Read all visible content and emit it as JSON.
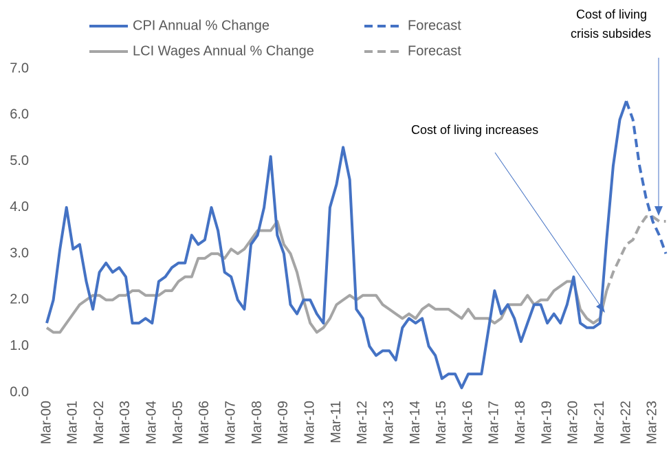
{
  "chart_data": {
    "type": "line",
    "categories": [
      "Mar-00",
      null,
      null,
      null,
      "Mar-01",
      null,
      null,
      null,
      "Mar-02",
      null,
      null,
      null,
      "Mar-03",
      null,
      null,
      null,
      "Mar-04",
      null,
      null,
      null,
      "Mar-05",
      null,
      null,
      null,
      "Mar-06",
      null,
      null,
      null,
      "Mar-07",
      null,
      null,
      null,
      "Mar-08",
      null,
      null,
      null,
      "Mar-09",
      null,
      null,
      null,
      "Mar-10",
      null,
      null,
      null,
      "Mar-11",
      null,
      null,
      null,
      "Mar-12",
      null,
      null,
      null,
      "Mar-13",
      null,
      null,
      null,
      "Mar-14",
      null,
      null,
      null,
      "Mar-15",
      null,
      null,
      null,
      "Mar-16",
      null,
      null,
      null,
      "Mar-17",
      null,
      null,
      null,
      "Mar-18",
      null,
      null,
      null,
      "Mar-19",
      null,
      null,
      null,
      "Mar-20",
      null,
      null,
      null,
      "Mar-21",
      null,
      null,
      null,
      "Mar-22",
      null,
      null,
      null,
      "Mar-23",
      null,
      null
    ],
    "series": [
      {
        "name": "CPI Annual % Change",
        "color": "#4472c4",
        "style": "solid",
        "values": [
          1.5,
          2.0,
          3.1,
          4.0,
          3.1,
          3.2,
          2.4,
          1.8,
          2.6,
          2.8,
          2.6,
          2.7,
          2.5,
          1.5,
          1.5,
          1.6,
          1.5,
          2.4,
          2.5,
          2.7,
          2.8,
          2.8,
          3.4,
          3.2,
          3.3,
          4.0,
          3.5,
          2.6,
          2.5,
          2.0,
          1.8,
          3.2,
          3.4,
          4.0,
          5.1,
          3.4,
          3.0,
          1.9,
          1.7,
          2.0,
          2.0,
          1.7,
          1.5,
          4.0,
          4.5,
          5.3,
          4.6,
          1.8,
          1.6,
          1.0,
          0.8,
          0.9,
          0.9,
          0.7,
          1.4,
          1.6,
          1.5,
          1.6,
          1.0,
          0.8,
          0.3,
          0.4,
          0.4,
          0.1,
          0.4,
          0.4,
          0.4,
          1.3,
          2.2,
          1.7,
          1.9,
          1.6,
          1.1,
          1.5,
          1.9,
          1.9,
          1.5,
          1.7,
          1.5,
          1.9,
          2.5,
          1.5,
          1.4,
          1.4,
          1.5,
          3.3,
          4.9,
          5.9,
          6.3,
          null,
          null,
          null,
          null,
          null,
          null
        ]
      },
      {
        "name": "Forecast",
        "color": "#4472c4",
        "style": "dashed",
        "values": [
          null,
          null,
          null,
          null,
          null,
          null,
          null,
          null,
          null,
          null,
          null,
          null,
          null,
          null,
          null,
          null,
          null,
          null,
          null,
          null,
          null,
          null,
          null,
          null,
          null,
          null,
          null,
          null,
          null,
          null,
          null,
          null,
          null,
          null,
          null,
          null,
          null,
          null,
          null,
          null,
          null,
          null,
          null,
          null,
          null,
          null,
          null,
          null,
          null,
          null,
          null,
          null,
          null,
          null,
          null,
          null,
          null,
          null,
          null,
          null,
          null,
          null,
          null,
          null,
          null,
          null,
          null,
          null,
          null,
          null,
          null,
          null,
          null,
          null,
          null,
          null,
          null,
          null,
          null,
          null,
          null,
          null,
          null,
          null,
          null,
          null,
          null,
          null,
          6.3,
          5.9,
          4.9,
          4.2,
          3.7,
          3.4,
          3.0
        ]
      },
      {
        "name": "LCI Wages Annual % Change",
        "color": "#a5a5a5",
        "style": "solid",
        "values": [
          1.4,
          1.3,
          1.3,
          1.5,
          1.7,
          1.9,
          2.0,
          2.1,
          2.1,
          2.0,
          2.0,
          2.1,
          2.1,
          2.2,
          2.2,
          2.1,
          2.1,
          2.1,
          2.2,
          2.2,
          2.4,
          2.5,
          2.5,
          2.9,
          2.9,
          3.0,
          3.0,
          2.9,
          3.1,
          3.0,
          3.1,
          3.3,
          3.5,
          3.5,
          3.5,
          3.7,
          3.2,
          3.0,
          2.6,
          2.0,
          1.5,
          1.3,
          1.4,
          1.6,
          1.9,
          2.0,
          2.1,
          2.0,
          2.1,
          2.1,
          2.1,
          1.9,
          1.8,
          1.7,
          1.6,
          1.7,
          1.6,
          1.8,
          1.9,
          1.8,
          1.8,
          1.8,
          1.7,
          1.6,
          1.8,
          1.6,
          1.6,
          1.6,
          1.5,
          1.6,
          1.9,
          1.9,
          1.9,
          2.1,
          1.9,
          2.0,
          2.0,
          2.2,
          2.3,
          2.4,
          2.4,
          1.8,
          1.6,
          1.5,
          1.6,
          2.2,
          null,
          null,
          null,
          null,
          null,
          null,
          null,
          null,
          null
        ]
      },
      {
        "name": "Forecast",
        "color": "#a5a5a5",
        "style": "dashed",
        "values": [
          null,
          null,
          null,
          null,
          null,
          null,
          null,
          null,
          null,
          null,
          null,
          null,
          null,
          null,
          null,
          null,
          null,
          null,
          null,
          null,
          null,
          null,
          null,
          null,
          null,
          null,
          null,
          null,
          null,
          null,
          null,
          null,
          null,
          null,
          null,
          null,
          null,
          null,
          null,
          null,
          null,
          null,
          null,
          null,
          null,
          null,
          null,
          null,
          null,
          null,
          null,
          null,
          null,
          null,
          null,
          null,
          null,
          null,
          null,
          null,
          null,
          null,
          null,
          null,
          null,
          null,
          null,
          null,
          null,
          null,
          null,
          null,
          null,
          null,
          null,
          null,
          null,
          null,
          null,
          null,
          null,
          null,
          null,
          null,
          null,
          2.2,
          2.6,
          2.9,
          3.2,
          3.3,
          3.6,
          3.8,
          3.8,
          3.7,
          3.7
        ]
      }
    ],
    "ylim": [
      0,
      7
    ],
    "yticks": [
      {
        "value": 0,
        "label": "0.0"
      },
      {
        "value": 1,
        "label": "1.0"
      },
      {
        "value": 2,
        "label": "2.0"
      },
      {
        "value": 3,
        "label": "3.0"
      },
      {
        "value": 4,
        "label": "4.0"
      },
      {
        "value": 5,
        "label": "5.0"
      },
      {
        "value": 6,
        "label": "6.0"
      },
      {
        "value": 7,
        "label": "7.0"
      }
    ],
    "grid": false,
    "legend": "top",
    "annotations": [
      {
        "text": "Cost of living increases"
      },
      {
        "lines": [
          "Cost of living",
          "crisis subsides"
        ]
      }
    ]
  }
}
